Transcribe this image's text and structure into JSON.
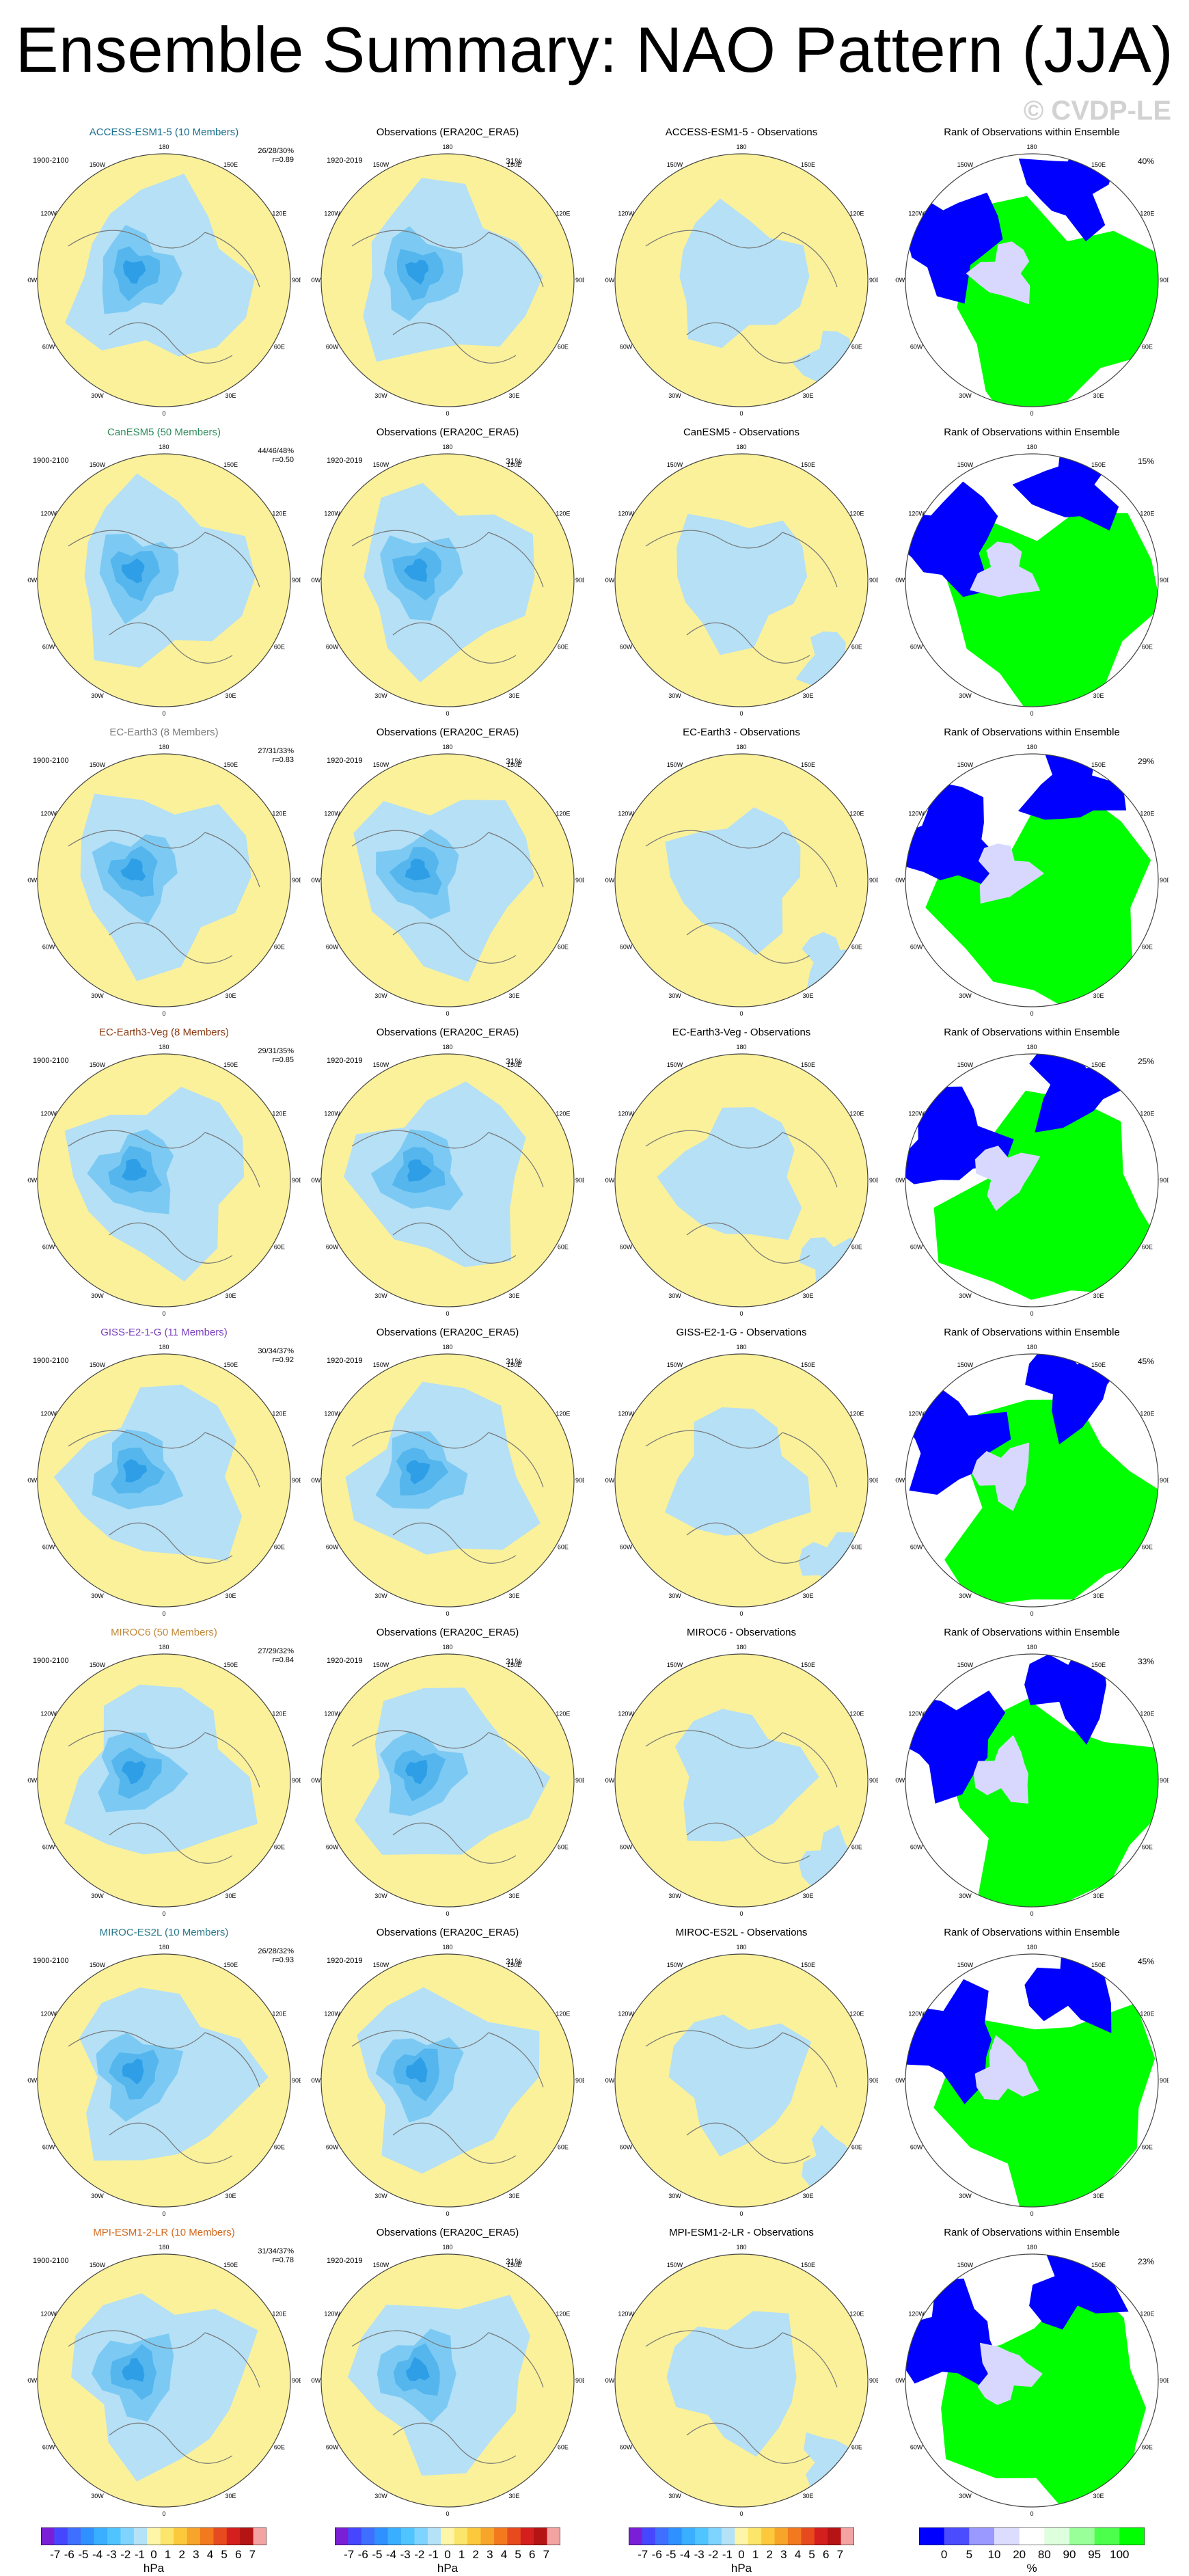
{
  "title": "Ensemble Summary: NAO Pattern (JJA)",
  "watermark": "© CVDP-LE",
  "period_model": "1900-2100",
  "period_obs": "1920-2019",
  "obs_title": "Observations (ERA20C_ERA5)",
  "rank_title": "Rank of Observations within Ensemble",
  "obs_pct": "31%",
  "lon_labels": [
    "180",
    "150E",
    "120E",
    "90E",
    "60E",
    "30E",
    "0",
    "30W",
    "60W",
    "90W",
    "120W",
    "150W"
  ],
  "models": [
    {
      "name": "ACCESS-ESM1-5",
      "title": "ACCESS-ESM1-5 (10 Members)",
      "color": "#1a6f8f",
      "stats1": "26/28/30%",
      "stats2": "r=0.89",
      "diff_title": "ACCESS-ESM1-5 - Observations",
      "rank_pct": "40%"
    },
    {
      "name": "CanESM5",
      "title": "CanESM5 (50 Members)",
      "color": "#2f8a5a",
      "stats1": "44/46/48%",
      "stats2": "r=0.50",
      "diff_title": "CanESM5 - Observations",
      "rank_pct": "15%"
    },
    {
      "name": "EC-Earth3",
      "title": "EC-Earth3 (8 Members)",
      "color": "#7a7a7a",
      "stats1": "27/31/33%",
      "stats2": "r=0.83",
      "diff_title": "EC-Earth3 - Observations",
      "rank_pct": "29%"
    },
    {
      "name": "EC-Earth3-Veg",
      "title": "EC-Earth3-Veg (8 Members)",
      "color": "#8a3b12",
      "stats1": "29/31/35%",
      "stats2": "r=0.85",
      "diff_title": "EC-Earth3-Veg - Observations",
      "rank_pct": "25%"
    },
    {
      "name": "GISS-E2-1-G",
      "title": "GISS-E2-1-G (11 Members)",
      "color": "#7b3fbf",
      "stats1": "30/34/37%",
      "stats2": "r=0.92",
      "diff_title": "GISS-E2-1-G - Observations",
      "rank_pct": "45%"
    },
    {
      "name": "MIROC6",
      "title": "MIROC6 (50 Members)",
      "color": "#c08a3a",
      "stats1": "27/29/32%",
      "stats2": "r=0.84",
      "diff_title": "MIROC6 - Observations",
      "rank_pct": "33%"
    },
    {
      "name": "MIROC-ES2L",
      "title": "MIROC-ES2L (10 Members)",
      "color": "#2a7a8a",
      "stats1": "26/28/32%",
      "stats2": "r=0.93",
      "diff_title": "MIROC-ES2L - Observations",
      "rank_pct": "45%"
    },
    {
      "name": "MPI-ESM1-2-LR",
      "title": "MPI-ESM1-2-LR (10 Members)",
      "color": "#d2691e",
      "stats1": "31/34/37%",
      "stats2": "r=0.78",
      "diff_title": "MPI-ESM1-2-LR - Observations",
      "rank_pct": "23%"
    }
  ],
  "colorbar_hpa": {
    "ticks": [
      "-7",
      "-6",
      "-5",
      "-4",
      "-3",
      "-2",
      "-1",
      "0",
      "1",
      "2",
      "3",
      "4",
      "5",
      "6",
      "7"
    ],
    "unit": "hPa",
    "colors": [
      "#7a1fd6",
      "#4646ff",
      "#3f6fff",
      "#2f90ff",
      "#3aaeff",
      "#4fc4ff",
      "#7fd4ff",
      "#b5e2f7",
      "#fdf6a8",
      "#fbe56a",
      "#fbc93b",
      "#f7a52a",
      "#f3791f",
      "#e84a1f",
      "#d41f1f",
      "#b41414",
      "#f4a3a3"
    ]
  },
  "colorbar_pct": {
    "ticks": [
      "0",
      "5",
      "10",
      "20",
      "80",
      "90",
      "95",
      "100"
    ],
    "unit": "%",
    "colors": [
      "#0000ff",
      "#4c4cff",
      "#9999ff",
      "#dcdcff",
      "#ffffff",
      "#ddffdd",
      "#99ff99",
      "#4cff4c",
      "#00ff00"
    ]
  },
  "map_colors": {
    "pos": "#fbf19a",
    "neg": "#b5e0f6",
    "neg2": "#7ccaf3",
    "neg3": "#55b6ee",
    "neg4": "#2e9fe6",
    "rank_hi": "#00ff00",
    "rank_lo": "#0000ff",
    "rank_mid": "#d8d8ff"
  }
}
